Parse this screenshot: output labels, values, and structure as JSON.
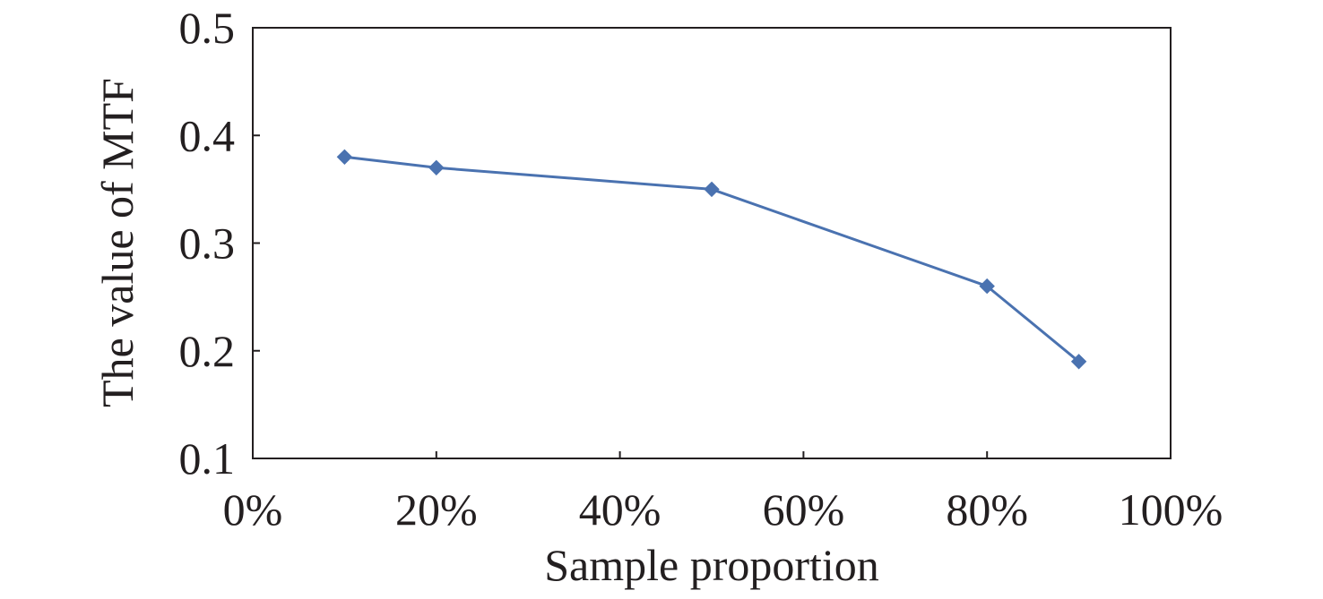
{
  "chart_data": {
    "type": "line",
    "title": "",
    "xlabel": "Sample proportion",
    "ylabel": "The value of MTF",
    "xlim": [
      0,
      100
    ],
    "ylim": [
      0.1,
      0.5
    ],
    "x_tick_values": [
      0,
      20,
      40,
      60,
      80,
      100
    ],
    "x_tick_labels": [
      "0%",
      "20%",
      "40%",
      "60%",
      "80%",
      "100%"
    ],
    "y_tick_values": [
      0.1,
      0.2,
      0.3,
      0.4,
      0.5
    ],
    "y_tick_labels": [
      "0.1",
      "0.2",
      "0.3",
      "0.4",
      "0.5"
    ],
    "grid": false,
    "legend": "none",
    "series": [
      {
        "color": "#4a72b0",
        "marker": "diamond",
        "x": [
          10,
          20,
          50,
          80,
          90
        ],
        "y": [
          0.38,
          0.37,
          0.35,
          0.26,
          0.19
        ]
      }
    ]
  }
}
